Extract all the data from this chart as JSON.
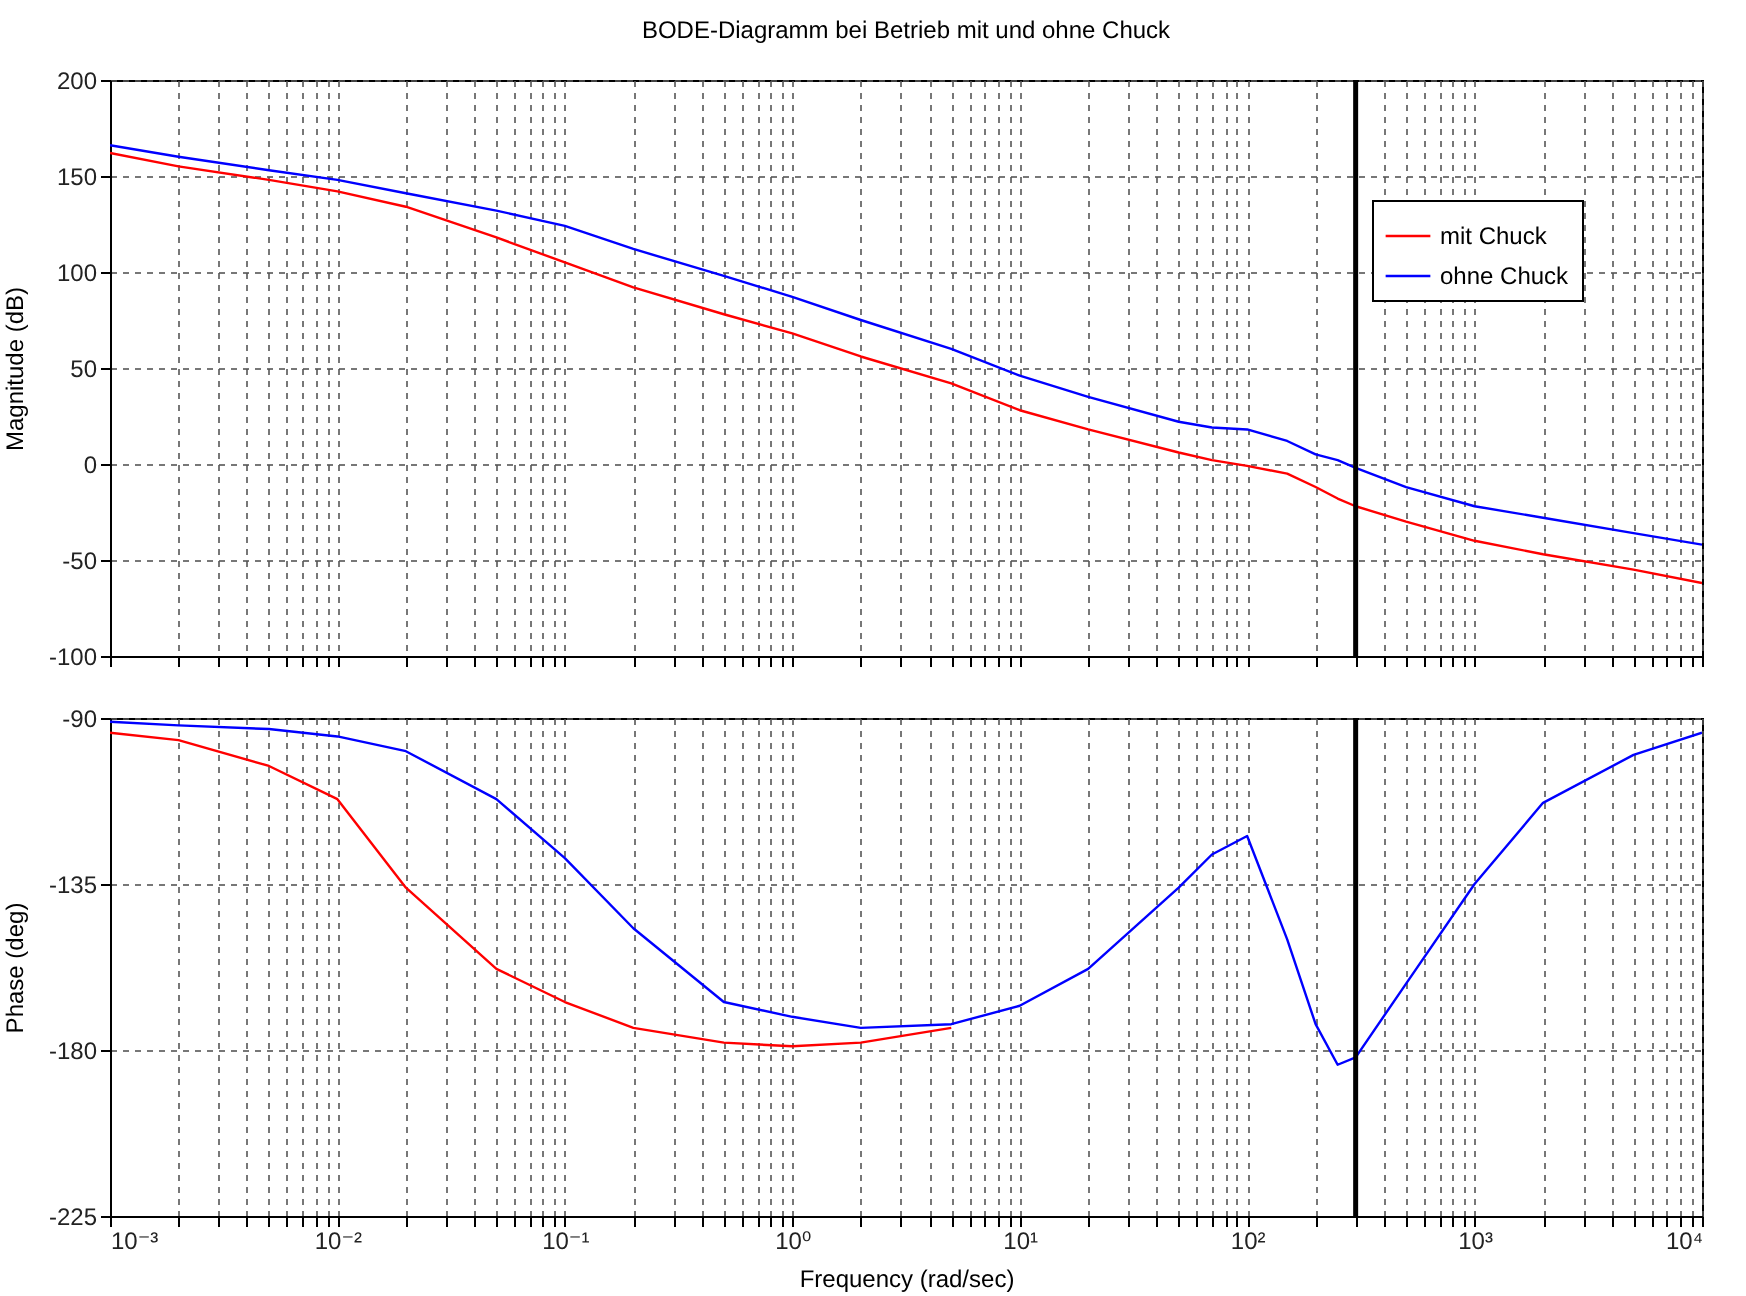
{
  "chart_data": [
    {
      "type": "line",
      "title": "BODE-Diagramm bei Betrieb mit und ohne Chuck",
      "ylabel": "Magnitude (dB)",
      "legend": "top right",
      "grid": true,
      "tick_labels": "y",
      "log": "x",
      "x": [
        0.001,
        0.002,
        0.005,
        0.01,
        0.02,
        0.05,
        0.1,
        0.2,
        0.5,
        1,
        2,
        5,
        10,
        20,
        50,
        70,
        100,
        150,
        200,
        250,
        300,
        500,
        1000,
        2000,
        5000,
        10000
      ],
      "series": [
        {
          "name": "mit Chuck",
          "color": "#ff0000",
          "values": [
            162,
            155,
            148,
            142,
            134,
            118,
            105,
            92,
            78,
            68,
            56,
            42,
            28,
            18,
            6,
            2,
            -1,
            -5,
            -12,
            -18,
            -22,
            -30,
            -40,
            -47,
            -55,
            -62
          ]
        },
        {
          "name": "ohne Chuck",
          "color": "#0000ff",
          "values": [
            166,
            160,
            153,
            148,
            141,
            132,
            124,
            112,
            98,
            87,
            75,
            60,
            46,
            35,
            22,
            19,
            18,
            12,
            5,
            2,
            -2,
            -12,
            -22,
            -28,
            -36,
            -42
          ]
        }
      ],
      "xlim": [
        0.001,
        10000
      ],
      "xticks": [
        {
          "value": 0.001,
          "label": null
        },
        {
          "value": 0.002,
          "label": null
        },
        {
          "value": 0.003,
          "label": null
        },
        {
          "value": 0.004,
          "label": null
        },
        {
          "value": 0.005,
          "label": null
        },
        {
          "value": 0.006,
          "label": null
        },
        {
          "value": 0.007,
          "label": null
        },
        {
          "value": 0.008,
          "label": null
        },
        {
          "value": 0.009,
          "label": null
        },
        {
          "value": 0.01,
          "label": null
        },
        {
          "value": 0.02,
          "label": null
        },
        {
          "value": 0.03,
          "label": null
        },
        {
          "value": 0.04,
          "label": null
        },
        {
          "value": 0.05,
          "label": null
        },
        {
          "value": 0.06,
          "label": null
        },
        {
          "value": 0.07,
          "label": null
        },
        {
          "value": 0.08,
          "label": null
        },
        {
          "value": 0.09,
          "label": null
        },
        {
          "value": 0.1,
          "label": null
        },
        {
          "value": 0.2,
          "label": null
        },
        {
          "value": 0.3,
          "label": null
        },
        {
          "value": 0.4,
          "label": null
        },
        {
          "value": 0.5,
          "label": null
        },
        {
          "value": 0.6,
          "label": null
        },
        {
          "value": 0.7,
          "label": null
        },
        {
          "value": 0.8,
          "label": null
        },
        {
          "value": 0.9,
          "label": null
        },
        {
          "value": 1,
          "label": null
        },
        {
          "value": 2,
          "label": null
        },
        {
          "value": 3,
          "label": null
        },
        {
          "value": 4,
          "label": null
        },
        {
          "value": 5,
          "label": null
        },
        {
          "value": 6,
          "label": null
        },
        {
          "value": 7,
          "label": null
        },
        {
          "value": 8,
          "label": null
        },
        {
          "value": 9,
          "label": null
        },
        {
          "value": 10,
          "label": null
        },
        {
          "value": 20,
          "label": null
        },
        {
          "value": 30,
          "label": null
        },
        {
          "value": 40,
          "label": null
        },
        {
          "value": 50,
          "label": null
        },
        {
          "value": 60,
          "label": null
        },
        {
          "value": 70,
          "label": null
        },
        {
          "value": 80,
          "label": null
        },
        {
          "value": 90,
          "label": null
        },
        {
          "value": 100,
          "label": null
        },
        {
          "value": 200,
          "label": null
        },
        {
          "value": 300,
          "label": null
        },
        {
          "value": 400,
          "label": null
        },
        {
          "value": 500,
          "label": null
        },
        {
          "value": 600,
          "label": null
        },
        {
          "value": 700,
          "label": null
        },
        {
          "value": 800,
          "label": null
        },
        {
          "value": 900,
          "label": null
        },
        {
          "value": 1000,
          "label": null
        },
        {
          "value": 2000,
          "label": null
        },
        {
          "value": 3000,
          "label": null
        },
        {
          "value": 4000,
          "label": null
        },
        {
          "value": 5000,
          "label": null
        },
        {
          "value": 6000,
          "label": null
        },
        {
          "value": 7000,
          "label": null
        },
        {
          "value": 8000,
          "label": null
        },
        {
          "value": 9000,
          "label": null
        },
        {
          "value": 10000,
          "label": null
        }
      ],
      "ylim": [
        -100,
        200
      ],
      "yticks": [
        -100,
        -50,
        0,
        50,
        100,
        150,
        200
      ],
      "ref_lines": [
        {
          "axis": "x",
          "value": 300,
          "color": "#000000"
        }
      ]
    },
    {
      "type": "line",
      "xlabel": "Frequency  (rad/sec)",
      "ylabel": "Phase (deg)",
      "grid": true,
      "log": "x",
      "x": [
        0.001,
        0.002,
        0.005,
        0.01,
        0.02,
        0.05,
        0.1,
        0.2,
        0.5,
        1,
        2,
        5,
        10,
        20,
        50,
        70,
        100,
        150,
        200,
        250,
        300,
        500,
        1000,
        2000,
        5000,
        10000
      ],
      "series": [
        {
          "color": "#ff0000",
          "values": [
            -94,
            -96,
            -103,
            -112,
            -136,
            -158,
            -167,
            -174,
            -178,
            -179,
            -178,
            -174,
            null,
            null,
            null,
            null,
            null,
            null,
            null,
            null,
            null,
            null,
            null,
            null,
            null,
            null
          ]
        },
        {
          "color": "#0000ff",
          "values": [
            -91,
            -92,
            -93,
            -95,
            -99,
            -112,
            -128,
            -147,
            -167,
            -171,
            -174,
            -173,
            -168,
            -158,
            -136,
            -127,
            -122,
            -150,
            -173,
            -184,
            -182,
            -162,
            -135,
            -113,
            -100,
            -94
          ]
        }
      ],
      "xlim": [
        0.001,
        10000
      ],
      "xticks": [
        {
          "value": 0.001,
          "label": "10⁻³"
        },
        {
          "value": 0.002,
          "label": null
        },
        {
          "value": 0.003,
          "label": null
        },
        {
          "value": 0.004,
          "label": null
        },
        {
          "value": 0.005,
          "label": null
        },
        {
          "value": 0.006,
          "label": null
        },
        {
          "value": 0.007,
          "label": null
        },
        {
          "value": 0.008,
          "label": null
        },
        {
          "value": 0.009,
          "label": null
        },
        {
          "value": 0.01,
          "label": "10⁻²"
        },
        {
          "value": 0.02,
          "label": null
        },
        {
          "value": 0.03,
          "label": null
        },
        {
          "value": 0.04,
          "label": null
        },
        {
          "value": 0.05,
          "label": null
        },
        {
          "value": 0.06,
          "label": null
        },
        {
          "value": 0.07,
          "label": null
        },
        {
          "value": 0.08,
          "label": null
        },
        {
          "value": 0.09,
          "label": null
        },
        {
          "value": 0.1,
          "label": "10⁻¹"
        },
        {
          "value": 0.2,
          "label": null
        },
        {
          "value": 0.3,
          "label": null
        },
        {
          "value": 0.4,
          "label": null
        },
        {
          "value": 0.5,
          "label": null
        },
        {
          "value": 0.6,
          "label": null
        },
        {
          "value": 0.7,
          "label": null
        },
        {
          "value": 0.8,
          "label": null
        },
        {
          "value": 0.9,
          "label": null
        },
        {
          "value": 1,
          "label": "10⁰"
        },
        {
          "value": 2,
          "label": null
        },
        {
          "value": 3,
          "label": null
        },
        {
          "value": 4,
          "label": null
        },
        {
          "value": 5,
          "label": null
        },
        {
          "value": 6,
          "label": null
        },
        {
          "value": 7,
          "label": null
        },
        {
          "value": 8,
          "label": null
        },
        {
          "value": 9,
          "label": null
        },
        {
          "value": 10,
          "label": "10¹"
        },
        {
          "value": 20,
          "label": null
        },
        {
          "value": 30,
          "label": null
        },
        {
          "value": 40,
          "label": null
        },
        {
          "value": 50,
          "label": null
        },
        {
          "value": 60,
          "label": null
        },
        {
          "value": 70,
          "label": null
        },
        {
          "value": 80,
          "label": null
        },
        {
          "value": 90,
          "label": null
        },
        {
          "value": 100,
          "label": "10²"
        },
        {
          "value": 200,
          "label": null
        },
        {
          "value": 300,
          "label": null
        },
        {
          "value": 400,
          "label": null
        },
        {
          "value": 500,
          "label": null
        },
        {
          "value": 600,
          "label": null
        },
        {
          "value": 700,
          "label": null
        },
        {
          "value": 800,
          "label": null
        },
        {
          "value": 900,
          "label": null
        },
        {
          "value": 1000,
          "label": "10³"
        },
        {
          "value": 2000,
          "label": null
        },
        {
          "value": 3000,
          "label": null
        },
        {
          "value": 4000,
          "label": null
        },
        {
          "value": 5000,
          "label": null
        },
        {
          "value": 6000,
          "label": null
        },
        {
          "value": 7000,
          "label": null
        },
        {
          "value": 8000,
          "label": null
        },
        {
          "value": 9000,
          "label": null
        },
        {
          "value": 10000,
          "label": "10⁴"
        }
      ],
      "ylim": [
        -225,
        -90
      ],
      "yticks": [
        -225,
        -180,
        -135,
        -90
      ],
      "ref_lines": [
        {
          "axis": "x",
          "value": 300,
          "color": "#000000"
        }
      ]
    }
  ]
}
